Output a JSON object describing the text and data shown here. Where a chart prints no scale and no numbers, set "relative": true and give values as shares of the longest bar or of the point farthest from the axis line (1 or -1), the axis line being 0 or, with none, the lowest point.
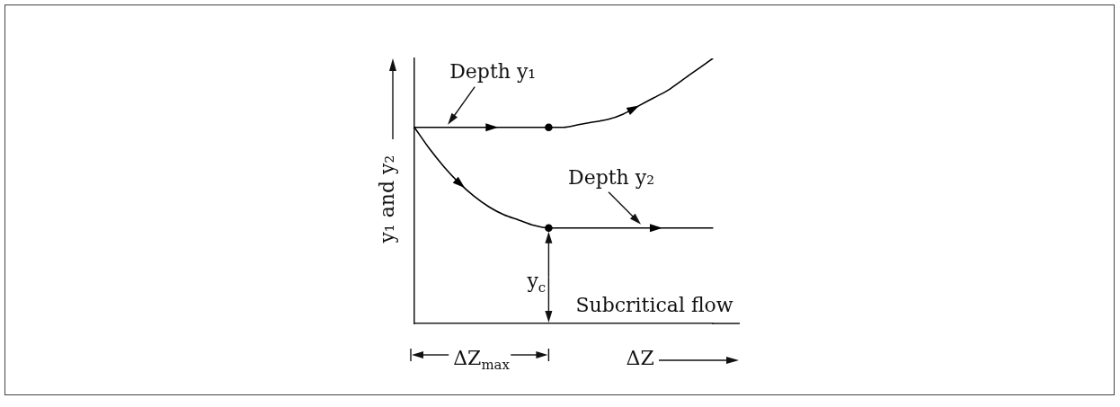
{
  "chart_data": {
    "type": "line",
    "relative": true,
    "xlabel": "ΔZ",
    "ylabel": "y₁ and y₂",
    "categories": [
      null,
      null,
      null,
      null,
      null,
      null,
      null,
      null,
      null,
      null,
      null,
      null,
      null,
      null,
      null,
      null,
      null,
      null,
      null,
      null,
      null
    ],
    "series": [
      {
        "name": "Depth y₁",
        "color": "#000000",
        "values": [
          0.74,
          0.74,
          0.74,
          0.74,
          0.74,
          0.74,
          0.74,
          0.74,
          0.74,
          0.74,
          0.74,
          0.75,
          0.76,
          0.77,
          0.79,
          0.82,
          0.85,
          0.88,
          0.92,
          0.96,
          1
        ]
      },
      {
        "name": "Depth y₂",
        "color": "#000000",
        "values": [
          0.74,
          0.66,
          0.59,
          0.53,
          0.48,
          0.44,
          0.41,
          0.39,
          0.37,
          0.36,
          0.36,
          0.36,
          0.36,
          0.36,
          0.36,
          0.36,
          0.36,
          0.36,
          0.36,
          0.36,
          0.36
        ]
      },
      {
        "color": "#000000",
        "marker": "circle",
        "values": [
          null,
          null,
          null,
          null,
          null,
          null,
          null,
          null,
          null,
          0.74,
          null,
          null,
          null,
          null,
          null,
          null,
          null,
          null,
          null,
          null,
          null
        ]
      },
      {
        "color": "#000000",
        "marker": "circle",
        "values": [
          null,
          null,
          null,
          null,
          null,
          null,
          null,
          null,
          null,
          0.36,
          null,
          null,
          null,
          null,
          null,
          null,
          null,
          null,
          null,
          null,
          null
        ]
      }
    ],
    "annotations": [
      "ΔZ$_{max}$",
      "y$_{c}$",
      "Subcritical flow"
    ]
  }
}
